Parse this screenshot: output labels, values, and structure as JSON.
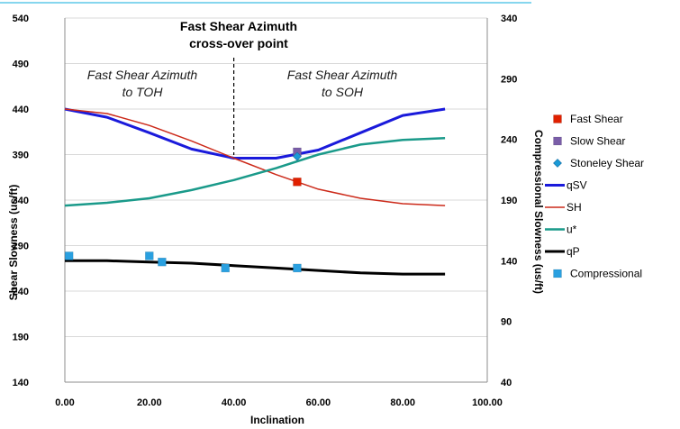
{
  "chart_data": {
    "type": "line",
    "xlabel": "Inclination",
    "ylabel": "Shear Slowness (us/ft)",
    "y2label": "Compressional Slowness (us/ft)",
    "xlim": [
      0,
      100
    ],
    "ylim": [
      140,
      540
    ],
    "y2lim": [
      40,
      340
    ],
    "x_ticks": [
      "0.00",
      "20.00",
      "40.00",
      "60.00",
      "80.00",
      "100.00"
    ],
    "y_ticks": [
      "140",
      "190",
      "240",
      "290",
      "340",
      "390",
      "440",
      "490",
      "540"
    ],
    "y2_ticks": [
      "40",
      "90",
      "140",
      "190",
      "240",
      "290",
      "340"
    ],
    "annotations": {
      "title_line1": "Fast Shear Azimuth",
      "title_line2": "cross-over point",
      "left_line1": "Fast Shear Azimuth",
      "left_line2": "to TOH",
      "right_line1": "Fast Shear Azimuth",
      "right_line2": "to SOH",
      "crossover_x": 40
    },
    "legend_position": "right",
    "series": [
      {
        "name": "Fast Shear",
        "kind": "marker",
        "marker": "square",
        "color": "#e02000",
        "axis": "left",
        "x": [
          55
        ],
        "y": [
          360
        ]
      },
      {
        "name": "Slow Shear",
        "kind": "marker",
        "marker": "square",
        "color": "#7a5ea8",
        "axis": "left",
        "x": [
          55
        ],
        "y": [
          393
        ]
      },
      {
        "name": "Stoneley Shear",
        "kind": "marker",
        "marker": "diamond",
        "color": "#1a9ad6",
        "axis": "left",
        "x": [
          55
        ],
        "y": [
          388
        ]
      },
      {
        "name": "qSV",
        "kind": "line",
        "color": "#1a1adb",
        "width": 3,
        "axis": "left",
        "x": [
          0,
          10,
          20,
          30,
          40,
          50,
          60,
          70,
          80,
          90
        ],
        "y": [
          440,
          431,
          414,
          396,
          386,
          386,
          395,
          414,
          433,
          440
        ]
      },
      {
        "name": "SH",
        "kind": "line",
        "color": "#cc2a1a",
        "width": 1.5,
        "axis": "left",
        "x": [
          0,
          10,
          20,
          30,
          40,
          50,
          60,
          70,
          80,
          90
        ],
        "y": [
          440,
          435,
          422,
          405,
          386,
          368,
          352,
          342,
          336,
          334
        ]
      },
      {
        "name": "u*",
        "kind": "line",
        "color": "#1a9a8a",
        "width": 2.5,
        "axis": "left",
        "x": [
          0,
          10,
          20,
          30,
          40,
          50,
          60,
          70,
          80,
          90
        ],
        "y": [
          334,
          337,
          342,
          351,
          362,
          375,
          390,
          401,
          406,
          408
        ]
      },
      {
        "name": "qP",
        "kind": "line",
        "color": "#000000",
        "width": 3,
        "axis": "right",
        "x": [
          0,
          10,
          20,
          30,
          40,
          50,
          60,
          70,
          80,
          90
        ],
        "y": [
          140,
          140,
          139,
          138,
          136,
          134,
          132,
          130,
          129,
          129
        ]
      },
      {
        "name": "Compressional",
        "kind": "marker",
        "marker": "square",
        "color": "#2aa0e0",
        "axis": "right",
        "x": [
          1,
          20,
          23,
          38,
          55
        ],
        "y": [
          144,
          144,
          139,
          134,
          134
        ]
      }
    ]
  }
}
